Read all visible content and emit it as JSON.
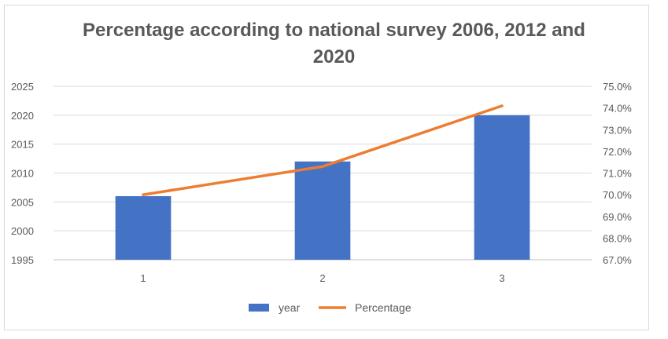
{
  "chart_data": {
    "type": "bar",
    "title_lines": [
      "Percentage according to national survey 2006, 2012 and",
      "2020"
    ],
    "categories": [
      "1",
      "2",
      "3"
    ],
    "series": [
      {
        "name": "year",
        "type": "bar",
        "axis": "left",
        "values": [
          2006,
          2012,
          2020
        ],
        "color": "#4472c4"
      },
      {
        "name": "Percentage",
        "type": "line",
        "axis": "right",
        "values": [
          70.0,
          71.3,
          74.1
        ],
        "color": "#ed7d31"
      }
    ],
    "y_left": {
      "min": 1995,
      "max": 2025,
      "ticks": [
        "1995",
        "2000",
        "2005",
        "2010",
        "2015",
        "2020",
        "2025"
      ]
    },
    "y_right": {
      "min": 67.0,
      "max": 75.0,
      "ticks": [
        "67.0%",
        "68.0%",
        "69.0%",
        "70.0%",
        "71.0%",
        "72.0%",
        "73.0%",
        "74.0%",
        "75.0%"
      ]
    },
    "grid": true,
    "legend_position": "bottom"
  }
}
